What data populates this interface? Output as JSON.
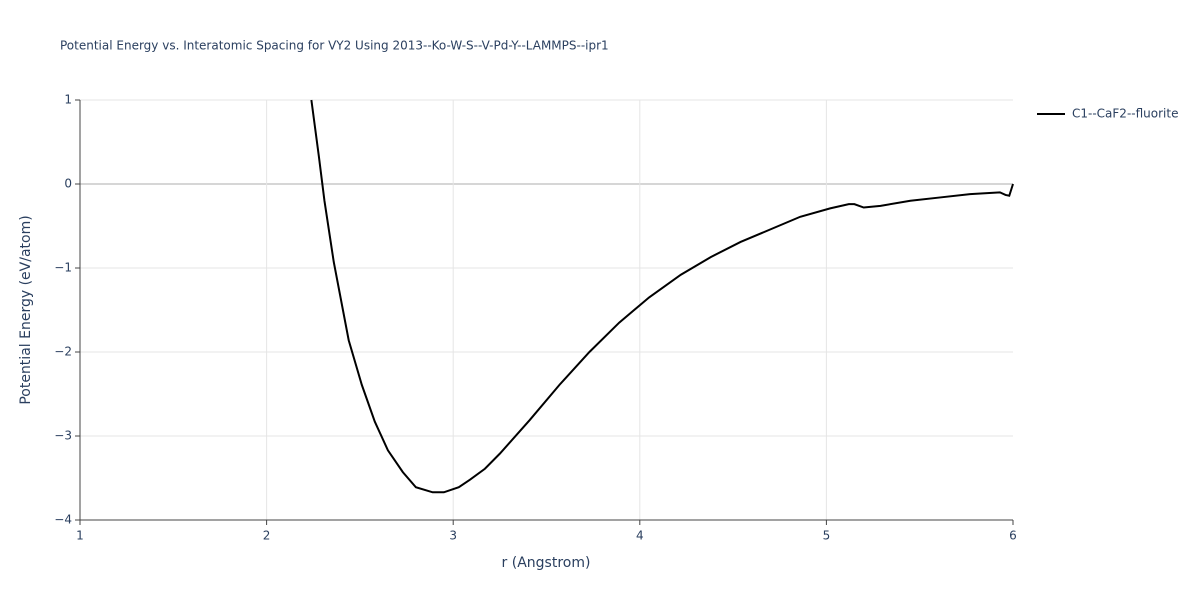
{
  "chart_data": {
    "type": "line",
    "title": "Potential Energy vs. Interatomic Spacing for VY2 Using 2013--Ko-W-S--V-Pd-Y--LAMMPS--ipr1",
    "x_label": "r (Angstrom)",
    "y_label": "Potential Energy (eV/atom)",
    "xlim": [
      1,
      6
    ],
    "ylim": [
      -4,
      1
    ],
    "xticks": [
      1,
      2,
      3,
      4,
      5,
      6
    ],
    "yticks": [
      {
        "value": -4,
        "label": "−4"
      },
      {
        "value": -3,
        "label": "−3"
      },
      {
        "value": -2,
        "label": "−2"
      },
      {
        "value": -1,
        "label": "−1"
      },
      0,
      1
    ],
    "grid": true,
    "legend": "right",
    "x": [
      2.24,
      2.28,
      2.31,
      2.36,
      2.44,
      2.51,
      2.58,
      2.65,
      2.73,
      2.8,
      2.89,
      2.95,
      3.03,
      3.09,
      3.17,
      3.25,
      3.41,
      3.57,
      3.73,
      3.89,
      4.05,
      4.22,
      4.38,
      4.54,
      4.7,
      4.86,
      5.02,
      5.12,
      5.15,
      5.2,
      5.29,
      5.45,
      5.61,
      5.77,
      5.93,
      5.96,
      5.98,
      6.0
    ],
    "series": [
      {
        "name": "C1--CaF2--fluorite",
        "color": "#000000",
        "values": [
          1.0,
          0.33,
          -0.2,
          -0.93,
          -1.86,
          -2.39,
          -2.83,
          -3.17,
          -3.43,
          -3.61,
          -3.67,
          -3.67,
          -3.61,
          -3.52,
          -3.39,
          -3.21,
          -2.81,
          -2.39,
          -2.0,
          -1.65,
          -1.35,
          -1.08,
          -0.87,
          -0.69,
          -0.54,
          -0.39,
          -0.29,
          -0.24,
          -0.24,
          -0.28,
          -0.26,
          -0.2,
          -0.16,
          -0.12,
          -0.1,
          -0.13,
          -0.14,
          0.0
        ]
      }
    ]
  }
}
